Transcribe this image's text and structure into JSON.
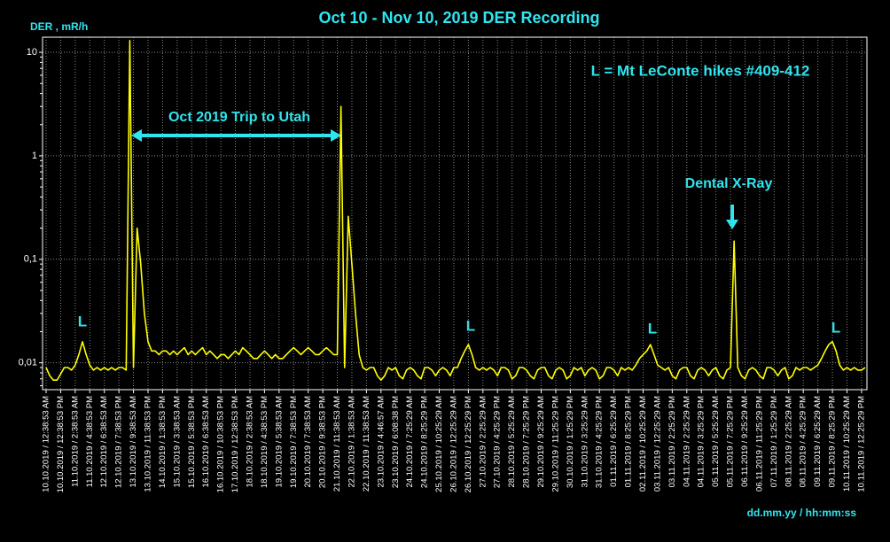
{
  "chart_data": {
    "type": "line",
    "title": "Oct 10 - Nov 10, 2019 DER Recording",
    "y_label": "DER , mR/h",
    "x_label": "dd.mm.yy / hh:mm:ss",
    "yscale": "log",
    "ylim": [
      0.0055,
      14
    ],
    "yticks": [
      10,
      1,
      {
        "value": 0.1,
        "label": "0,1"
      },
      {
        "value": 0.01,
        "label": "0,01"
      }
    ],
    "grid": true,
    "annotations": [
      "L = Mt LeConte hikes #409-412",
      "Oct 2019 Trip to Utah",
      "Dental X-Ray",
      "L",
      "L",
      "L",
      "L",
      "L"
    ],
    "categories": [
      "10.10.2019 / 12:38:53 AM",
      null,
      null,
      null,
      "10.10.2019 / 12:38:53 PM",
      null,
      null,
      null,
      "11.10.2019 / 2:38:53 AM",
      null,
      null,
      null,
      "11.10.2019 / 4:38:53 PM",
      null,
      null,
      null,
      "12.10.2019 / 6:38:53 AM",
      null,
      null,
      null,
      "12.10.2019 / 7:38:53 PM",
      null,
      null,
      null,
      "13.10.2019 / 9:38:53 AM",
      null,
      null,
      null,
      "13.10.2019 / 11:38:53 PM",
      null,
      null,
      null,
      "14.10.2019 / 1:38:53 PM",
      null,
      null,
      null,
      "15.10.2019 / 3:38:53 AM",
      null,
      null,
      null,
      "15.10.2019 / 5:38:53 PM",
      null,
      null,
      null,
      "16.10.2019 / 6:38:53 AM",
      null,
      null,
      null,
      "16.10.2019 / 10:38:53 PM",
      null,
      null,
      null,
      "17.10.2019 / 12:38:53 PM",
      null,
      null,
      null,
      "18.10.2019 / 2:38:53 AM",
      null,
      null,
      null,
      "18.10.2019 / 4:38:53 PM",
      null,
      null,
      null,
      "19.10.2019 / 5:38:53 AM",
      null,
      null,
      null,
      "19.10.2019 / 7:38:53 PM",
      null,
      null,
      null,
      "20.10.2019 / 7:38:53 AM",
      null,
      null,
      null,
      "20.10.2019 / 9:38:53 PM",
      null,
      null,
      null,
      "21.10.2019 / 11:38:53 AM",
      null,
      null,
      null,
      "22.10.2019 / 1:38:53 AM",
      null,
      null,
      null,
      "22.10.2019 / 11:38:53 AM",
      null,
      null,
      null,
      "23.10.2019 / 4:46:57 AM",
      null,
      null,
      null,
      "23.10.2019 / 6:08:38 PM",
      null,
      null,
      null,
      "24.10.2019 / 7:25:29 AM",
      null,
      null,
      null,
      "24.10.2019 / 8:25:29 PM",
      null,
      null,
      null,
      "25.10.2019 / 10:25:29 AM",
      null,
      null,
      null,
      "26.10.2019 / 12:25:29 AM",
      null,
      null,
      null,
      "26.10.2019 / 12:25:29 PM",
      null,
      null,
      null,
      "27.10.2019 / 2:25:29 AM",
      null,
      null,
      null,
      "27.10.2019 / 4:25:29 PM",
      null,
      null,
      null,
      "28.10.2019 / 5:25:29 AM",
      null,
      null,
      null,
      "28.10.2019 / 7:25:29 PM",
      null,
      null,
      null,
      "29.10.2019 / 9:25:29 AM",
      null,
      null,
      null,
      "29.10.2019 / 11:25:29 PM",
      null,
      null,
      null,
      "30.10.2019 / 1:25:29 PM",
      null,
      null,
      null,
      "31.10.2019 / 3:25:29 AM",
      null,
      null,
      null,
      "31.10.2019 / 4:25:29 PM",
      null,
      null,
      null,
      "01.11.2019 / 6:25:29 AM",
      null,
      null,
      null,
      "01.11.2019 / 8:25:29 PM",
      null,
      null,
      null,
      "02.11.2019 / 10:25:29 AM",
      null,
      null,
      null,
      "03.11.2019 / 12:25:29 AM",
      null,
      null,
      null,
      "03.11.2019 / 2:25:29 PM",
      null,
      null,
      null,
      "04.11.2019 / 2:25:29 AM",
      null,
      null,
      null,
      "04.11.2019 / 3:25:29 PM",
      null,
      null,
      null,
      "05.11.2019 / 5:25:29 AM",
      null,
      null,
      null,
      "05.11.2019 / 7:25:29 PM",
      null,
      null,
      null,
      "06.11.2019 / 9:25:29 AM",
      null,
      null,
      null,
      "06.11.2019 / 11:25:29 PM",
      null,
      null,
      null,
      "07.11.2019 / 1:25:29 PM",
      null,
      null,
      null,
      "08.11.2019 / 2:25:29 AM",
      null,
      null,
      null,
      "08.11.2019 / 4:25:29 PM",
      null,
      null,
      null,
      "09.11.2019 / 6:25:29 AM",
      null,
      null,
      null,
      "09.11.2019 / 8:25:29 PM",
      null,
      null,
      null,
      "10.11.2019 / 10:25:29 AM",
      null,
      null,
      null,
      "10.11.2019 / 12:25:29 PM",
      null
    ],
    "series": [
      {
        "name": "DER",
        "color": "#ffff00",
        "values": [
          0.009,
          0.0075,
          0.0068,
          0.0068,
          0.0078,
          0.009,
          0.009,
          0.0085,
          0.0095,
          0.012,
          0.016,
          0.012,
          0.0095,
          0.0085,
          0.009,
          0.0085,
          0.009,
          0.0085,
          0.009,
          0.0085,
          0.009,
          0.009,
          0.0085,
          13,
          0.009,
          0.2,
          0.09,
          0.03,
          0.016,
          0.013,
          0.013,
          0.012,
          0.013,
          0.013,
          0.012,
          0.013,
          0.012,
          0.013,
          0.014,
          0.012,
          0.013,
          0.012,
          0.013,
          0.014,
          0.012,
          0.013,
          0.012,
          0.011,
          0.012,
          0.012,
          0.011,
          0.012,
          0.013,
          0.012,
          0.014,
          0.013,
          0.012,
          0.011,
          0.011,
          0.012,
          0.013,
          0.012,
          0.011,
          0.012,
          0.011,
          0.011,
          0.012,
          0.013,
          0.014,
          0.013,
          0.012,
          0.013,
          0.014,
          0.013,
          0.012,
          0.012,
          0.013,
          0.014,
          0.013,
          0.012,
          0.012,
          3,
          0.009,
          0.26,
          0.09,
          0.03,
          0.012,
          0.009,
          0.0085,
          0.009,
          0.009,
          0.0075,
          0.0068,
          0.0075,
          0.009,
          0.0085,
          0.009,
          0.0075,
          0.007,
          0.0085,
          0.009,
          0.0085,
          0.0075,
          0.007,
          0.009,
          0.009,
          0.0085,
          0.0075,
          0.0085,
          0.009,
          0.0085,
          0.0075,
          0.009,
          0.009,
          0.011,
          0.013,
          0.015,
          0.012,
          0.009,
          0.0085,
          0.009,
          0.0085,
          0.009,
          0.0085,
          0.0075,
          0.009,
          0.009,
          0.0085,
          0.007,
          0.0075,
          0.009,
          0.009,
          0.0085,
          0.0075,
          0.007,
          0.0085,
          0.009,
          0.009,
          0.0075,
          0.007,
          0.0085,
          0.009,
          0.0085,
          0.007,
          0.0075,
          0.009,
          0.0085,
          0.009,
          0.0075,
          0.0085,
          0.009,
          0.0085,
          0.007,
          0.0075,
          0.009,
          0.009,
          0.0085,
          0.0075,
          0.009,
          0.0085,
          0.009,
          0.0085,
          0.0095,
          0.011,
          0.012,
          0.013,
          0.015,
          0.012,
          0.0095,
          0.009,
          0.0085,
          0.009,
          0.0075,
          0.007,
          0.0085,
          0.009,
          0.009,
          0.0075,
          0.007,
          0.0085,
          0.009,
          0.0085,
          0.0075,
          0.0085,
          0.009,
          0.0075,
          0.007,
          0.0085,
          0.009,
          0.15,
          0.009,
          0.0075,
          0.007,
          0.0085,
          0.009,
          0.0085,
          0.0075,
          0.007,
          0.009,
          0.009,
          0.0085,
          0.0075,
          0.0085,
          0.009,
          0.007,
          0.0075,
          0.009,
          0.0085,
          0.009,
          0.009,
          0.0085,
          0.009,
          0.0095,
          0.011,
          0.013,
          0.015,
          0.016,
          0.013,
          0.0095,
          0.0085,
          0.009,
          0.0085,
          0.009,
          0.0085,
          0.0085,
          0.009
        ]
      }
    ]
  }
}
